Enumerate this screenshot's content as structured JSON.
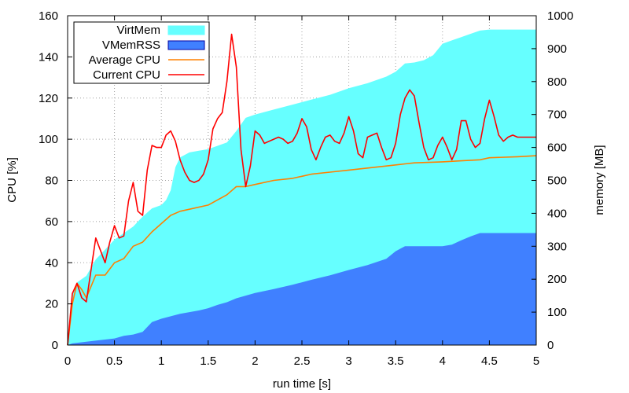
{
  "chart_data": {
    "type": "line",
    "xlabel": "run time [s]",
    "ylabel_left": "CPU [%]",
    "ylabel_right": "memory [MB]",
    "xlim": [
      0,
      5
    ],
    "ylim_left": [
      0,
      160
    ],
    "ylim_right": [
      0,
      1000
    ],
    "x_ticks": [
      0,
      0.5,
      1,
      1.5,
      2,
      2.5,
      3,
      3.5,
      4,
      4.5,
      5
    ],
    "x_tick_labels": [
      "0",
      "0.5",
      "1",
      "1.5",
      "2",
      "2.5",
      "3",
      "3.5",
      "4",
      "4.5",
      "5"
    ],
    "y_left_ticks": [
      0,
      20,
      40,
      60,
      80,
      100,
      120,
      140,
      160
    ],
    "y_left_tick_labels": [
      "0",
      "20",
      "40",
      "60",
      "80",
      "100",
      "120",
      "140",
      "160"
    ],
    "y_right_ticks": [
      0,
      100,
      200,
      300,
      400,
      500,
      600,
      700,
      800,
      900,
      1000
    ],
    "y_right_tick_labels": [
      "0",
      "100",
      "200",
      "300",
      "400",
      "500",
      "600",
      "700",
      "800",
      "900",
      "1000"
    ],
    "grid": true,
    "legend_position": "top-left",
    "series": [
      {
        "name": "VirtMem",
        "kind": "area",
        "axis": "right",
        "color": "#66ffff",
        "points": [
          [
            0,
            0
          ],
          [
            0.05,
            150
          ],
          [
            0.1,
            190
          ],
          [
            0.2,
            210
          ],
          [
            0.3,
            260
          ],
          [
            0.4,
            290
          ],
          [
            0.5,
            320
          ],
          [
            0.6,
            340
          ],
          [
            0.7,
            360
          ],
          [
            0.8,
            390
          ],
          [
            0.9,
            415
          ],
          [
            1.0,
            425
          ],
          [
            1.05,
            440
          ],
          [
            1.1,
            470
          ],
          [
            1.15,
            540
          ],
          [
            1.2,
            570
          ],
          [
            1.3,
            585
          ],
          [
            1.4,
            590
          ],
          [
            1.5,
            595
          ],
          [
            1.6,
            605
          ],
          [
            1.7,
            615
          ],
          [
            1.8,
            650
          ],
          [
            1.9,
            690
          ],
          [
            2.0,
            700
          ],
          [
            2.2,
            715
          ],
          [
            2.4,
            730
          ],
          [
            2.6,
            745
          ],
          [
            2.8,
            760
          ],
          [
            3.0,
            780
          ],
          [
            3.2,
            795
          ],
          [
            3.4,
            815
          ],
          [
            3.5,
            830
          ],
          [
            3.6,
            855
          ],
          [
            3.7,
            858
          ],
          [
            3.8,
            865
          ],
          [
            3.9,
            880
          ],
          [
            4.0,
            915
          ],
          [
            4.1,
            925
          ],
          [
            4.2,
            935
          ],
          [
            4.3,
            945
          ],
          [
            4.4,
            955
          ],
          [
            4.5,
            958
          ],
          [
            5.0,
            958
          ]
        ]
      },
      {
        "name": "VMemRSS",
        "kind": "area",
        "axis": "right",
        "color": "#4080ff",
        "points": [
          [
            0,
            0
          ],
          [
            0.05,
            5
          ],
          [
            0.2,
            10
          ],
          [
            0.5,
            20
          ],
          [
            0.6,
            28
          ],
          [
            0.7,
            32
          ],
          [
            0.8,
            40
          ],
          [
            0.9,
            70
          ],
          [
            1.0,
            80
          ],
          [
            1.2,
            95
          ],
          [
            1.4,
            105
          ],
          [
            1.5,
            112
          ],
          [
            1.6,
            122
          ],
          [
            1.7,
            130
          ],
          [
            1.8,
            142
          ],
          [
            1.9,
            150
          ],
          [
            2.0,
            158
          ],
          [
            2.2,
            170
          ],
          [
            2.4,
            183
          ],
          [
            2.6,
            198
          ],
          [
            2.8,
            212
          ],
          [
            3.0,
            228
          ],
          [
            3.2,
            243
          ],
          [
            3.4,
            262
          ],
          [
            3.5,
            285
          ],
          [
            3.6,
            300
          ],
          [
            3.7,
            300
          ],
          [
            4.0,
            300
          ],
          [
            4.1,
            305
          ],
          [
            4.2,
            318
          ],
          [
            4.3,
            330
          ],
          [
            4.4,
            340
          ],
          [
            5.0,
            340
          ]
        ]
      },
      {
        "name": "Average CPU",
        "kind": "line",
        "axis": "left",
        "color": "#ff8000",
        "points": [
          [
            0,
            0
          ],
          [
            0.05,
            20
          ],
          [
            0.1,
            30
          ],
          [
            0.15,
            27
          ],
          [
            0.2,
            23
          ],
          [
            0.3,
            34
          ],
          [
            0.4,
            34
          ],
          [
            0.5,
            40
          ],
          [
            0.6,
            42
          ],
          [
            0.7,
            48
          ],
          [
            0.8,
            50
          ],
          [
            0.9,
            55
          ],
          [
            1.0,
            59
          ],
          [
            1.1,
            63
          ],
          [
            1.2,
            65
          ],
          [
            1.3,
            66
          ],
          [
            1.5,
            68
          ],
          [
            1.7,
            73
          ],
          [
            1.8,
            77
          ],
          [
            1.9,
            77
          ],
          [
            2.0,
            78
          ],
          [
            2.2,
            80
          ],
          [
            2.4,
            81
          ],
          [
            2.5,
            82
          ],
          [
            2.6,
            83
          ],
          [
            2.8,
            84
          ],
          [
            3.0,
            85
          ],
          [
            3.2,
            86
          ],
          [
            3.4,
            87
          ],
          [
            3.6,
            88
          ],
          [
            3.7,
            88.5
          ],
          [
            4.0,
            89
          ],
          [
            4.2,
            89.5
          ],
          [
            4.4,
            90
          ],
          [
            4.5,
            91
          ],
          [
            4.8,
            91.5
          ],
          [
            5.0,
            92
          ]
        ]
      },
      {
        "name": "Current CPU",
        "kind": "line",
        "axis": "left",
        "color": "#ff0000",
        "points": [
          [
            0,
            0
          ],
          [
            0.05,
            25
          ],
          [
            0.1,
            30
          ],
          [
            0.15,
            23
          ],
          [
            0.2,
            21
          ],
          [
            0.3,
            52
          ],
          [
            0.4,
            40
          ],
          [
            0.45,
            50
          ],
          [
            0.5,
            58
          ],
          [
            0.55,
            52
          ],
          [
            0.6,
            53
          ],
          [
            0.65,
            70
          ],
          [
            0.7,
            79
          ],
          [
            0.75,
            65
          ],
          [
            0.8,
            63
          ],
          [
            0.85,
            85
          ],
          [
            0.9,
            97
          ],
          [
            0.95,
            96
          ],
          [
            1.0,
            96
          ],
          [
            1.05,
            102
          ],
          [
            1.1,
            104
          ],
          [
            1.15,
            99
          ],
          [
            1.2,
            90
          ],
          [
            1.25,
            84
          ],
          [
            1.3,
            80
          ],
          [
            1.35,
            79
          ],
          [
            1.4,
            80
          ],
          [
            1.45,
            83
          ],
          [
            1.5,
            90
          ],
          [
            1.55,
            105
          ],
          [
            1.6,
            110
          ],
          [
            1.65,
            113
          ],
          [
            1.7,
            128
          ],
          [
            1.75,
            151
          ],
          [
            1.8,
            135
          ],
          [
            1.85,
            95
          ],
          [
            1.9,
            77
          ],
          [
            1.95,
            87
          ],
          [
            2.0,
            104
          ],
          [
            2.05,
            102
          ],
          [
            2.1,
            98
          ],
          [
            2.15,
            99
          ],
          [
            2.2,
            100
          ],
          [
            2.25,
            101
          ],
          [
            2.3,
            100
          ],
          [
            2.35,
            98
          ],
          [
            2.4,
            99
          ],
          [
            2.45,
            103
          ],
          [
            2.5,
            110
          ],
          [
            2.55,
            106
          ],
          [
            2.6,
            95
          ],
          [
            2.65,
            90
          ],
          [
            2.7,
            96
          ],
          [
            2.75,
            101
          ],
          [
            2.8,
            102
          ],
          [
            2.85,
            99
          ],
          [
            2.9,
            98
          ],
          [
            2.95,
            103
          ],
          [
            3.0,
            111
          ],
          [
            3.05,
            104
          ],
          [
            3.1,
            93
          ],
          [
            3.15,
            91
          ],
          [
            3.2,
            101
          ],
          [
            3.25,
            102
          ],
          [
            3.3,
            103
          ],
          [
            3.35,
            96
          ],
          [
            3.4,
            90
          ],
          [
            3.45,
            91
          ],
          [
            3.5,
            98
          ],
          [
            3.55,
            112
          ],
          [
            3.6,
            120
          ],
          [
            3.65,
            124
          ],
          [
            3.7,
            121
          ],
          [
            3.75,
            108
          ],
          [
            3.8,
            96
          ],
          [
            3.85,
            90
          ],
          [
            3.9,
            91
          ],
          [
            3.95,
            97
          ],
          [
            4.0,
            101
          ],
          [
            4.05,
            96
          ],
          [
            4.1,
            90
          ],
          [
            4.15,
            95
          ],
          [
            4.2,
            109
          ],
          [
            4.25,
            109
          ],
          [
            4.3,
            100
          ],
          [
            4.35,
            96
          ],
          [
            4.4,
            98
          ],
          [
            4.45,
            110
          ],
          [
            4.5,
            119
          ],
          [
            4.55,
            111
          ],
          [
            4.6,
            102
          ],
          [
            4.65,
            99
          ],
          [
            4.7,
            101
          ],
          [
            4.75,
            102
          ],
          [
            4.8,
            101
          ],
          [
            4.9,
            101
          ],
          [
            5.0,
            101
          ]
        ]
      }
    ]
  }
}
